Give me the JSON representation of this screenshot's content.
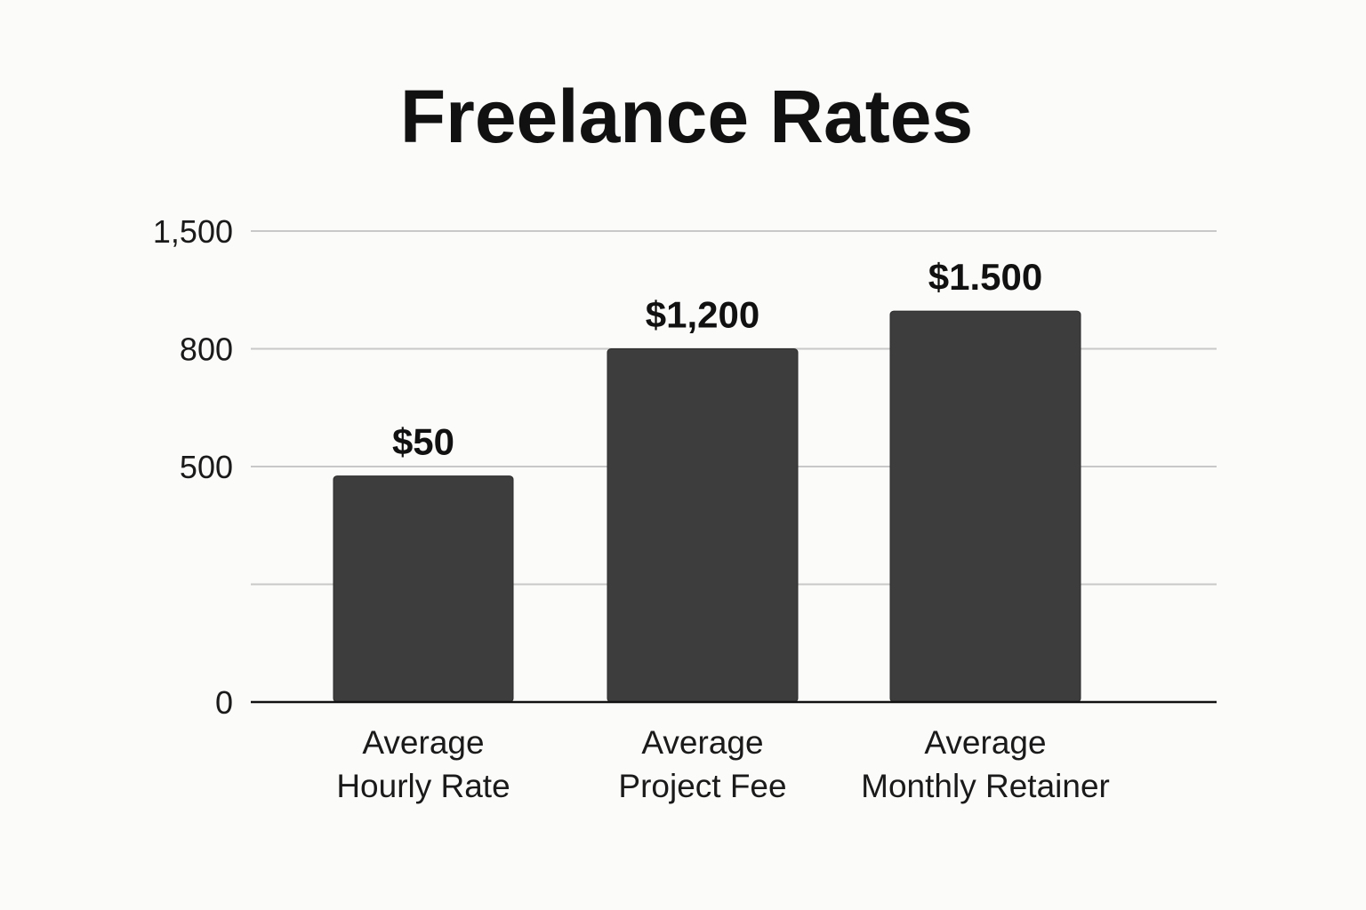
{
  "chart_data": {
    "type": "bar",
    "title": "Freelance Rates",
    "xlabel": "",
    "ylabel": "",
    "categories": [
      [
        "Average",
        "Hourly Rate"
      ],
      [
        "Average",
        "Project Fee"
      ],
      [
        "Average",
        "Monthly Retainer"
      ]
    ],
    "values": [
      50,
      1200,
      1500
    ],
    "data_labels": [
      "$50",
      "$1,200",
      "$1.500"
    ],
    "y_ticks": [
      {
        "label": "0",
        "level": 0
      },
      {
        "label": "",
        "level": 1
      },
      {
        "label": "500",
        "level": 2
      },
      {
        "label": "800",
        "level": 3
      },
      {
        "label": "1,500",
        "level": 4
      }
    ],
    "bar_levels": [
      1.92,
      3.0,
      3.32
    ],
    "grid": true,
    "legend": "none",
    "colors": {
      "bar": "#3d3d3d",
      "grid": "#c8c8c8",
      "axis": "#111111",
      "background": "#fbfbf9"
    }
  }
}
